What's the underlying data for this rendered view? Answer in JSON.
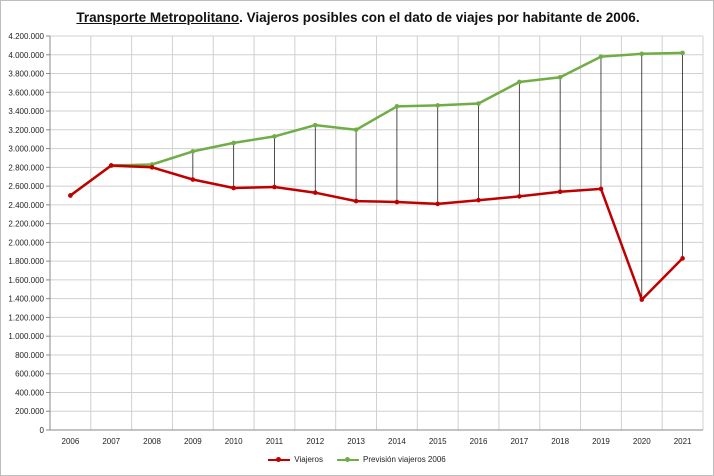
{
  "chart_data": {
    "type": "line",
    "title_main": "Transporte Metropolitano",
    "title_rest": ". Viajeros posibles con el dato de viajes por habitante de 2006.",
    "categories": [
      "2006",
      "2007",
      "2008",
      "2009",
      "2010",
      "2011",
      "2012",
      "2013",
      "2014",
      "2015",
      "2016",
      "2017",
      "2018",
      "2019",
      "2020",
      "2021"
    ],
    "ylim": [
      0,
      4200000
    ],
    "ytick_step": 200000,
    "ytick_labels": [
      "0",
      "200.000",
      "400.000",
      "600.000",
      "800.000",
      "1.000.000",
      "1.200.000",
      "1.400.000",
      "1.600.000",
      "1.800.000",
      "2.000.000",
      "2.200.000",
      "2.400.000",
      "2.600.000",
      "2.800.000",
      "3.000.000",
      "3.200.000",
      "3.400.000",
      "3.600.000",
      "3.800.000",
      "4.000.000",
      "4.200.000"
    ],
    "grid": true,
    "legend_position": "bottom",
    "series": [
      {
        "name": "Viajeros",
        "color": "#c00000",
        "values": [
          2500000,
          2820000,
          2800000,
          2670000,
          2580000,
          2590000,
          2530000,
          2440000,
          2430000,
          2410000,
          2450000,
          2490000,
          2540000,
          2570000,
          1390000,
          1830000
        ]
      },
      {
        "name": "Previsión viajeros 2006",
        "color": "#70ad47",
        "values": [
          2500000,
          2820000,
          2830000,
          2970000,
          3060000,
          3130000,
          3250000,
          3200000,
          3450000,
          3460000,
          3480000,
          3710000,
          3760000,
          3980000,
          4010000,
          4020000
        ]
      }
    ]
  }
}
